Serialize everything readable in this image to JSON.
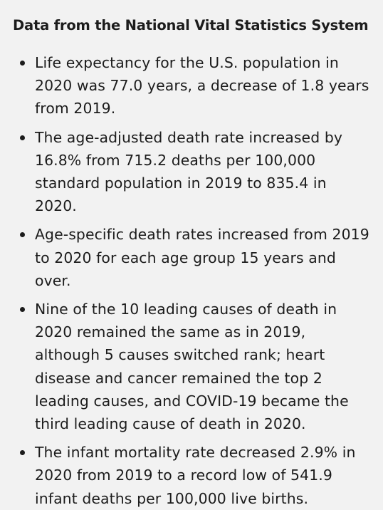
{
  "section": {
    "title": "Data from the National Vital Statistics System"
  },
  "bullets": [
    "Life expectancy for the U.S. population in 2020 was 77.0 years, a decrease of 1.8 years from 2019.",
    "The age-adjusted death rate increased by 16.8% from 715.2 deaths per 100,000 standard population in 2019 to 835.4 in 2020.",
    "Age-specific death rates increased from 2019 to 2020 for each age group 15 years and over.",
    "Nine of the 10 leading causes of death in 2020 remained the same as in 2019, although 5 causes switched rank; heart disease and cancer remained the top 2 leading causes, and COVID-19 became the third leading cause of death in 2020.",
    "The infant mortality rate decreased 2.9% in 2020 from 2019 to a record low of 541.9 infant deaths per 100,000 live births."
  ]
}
